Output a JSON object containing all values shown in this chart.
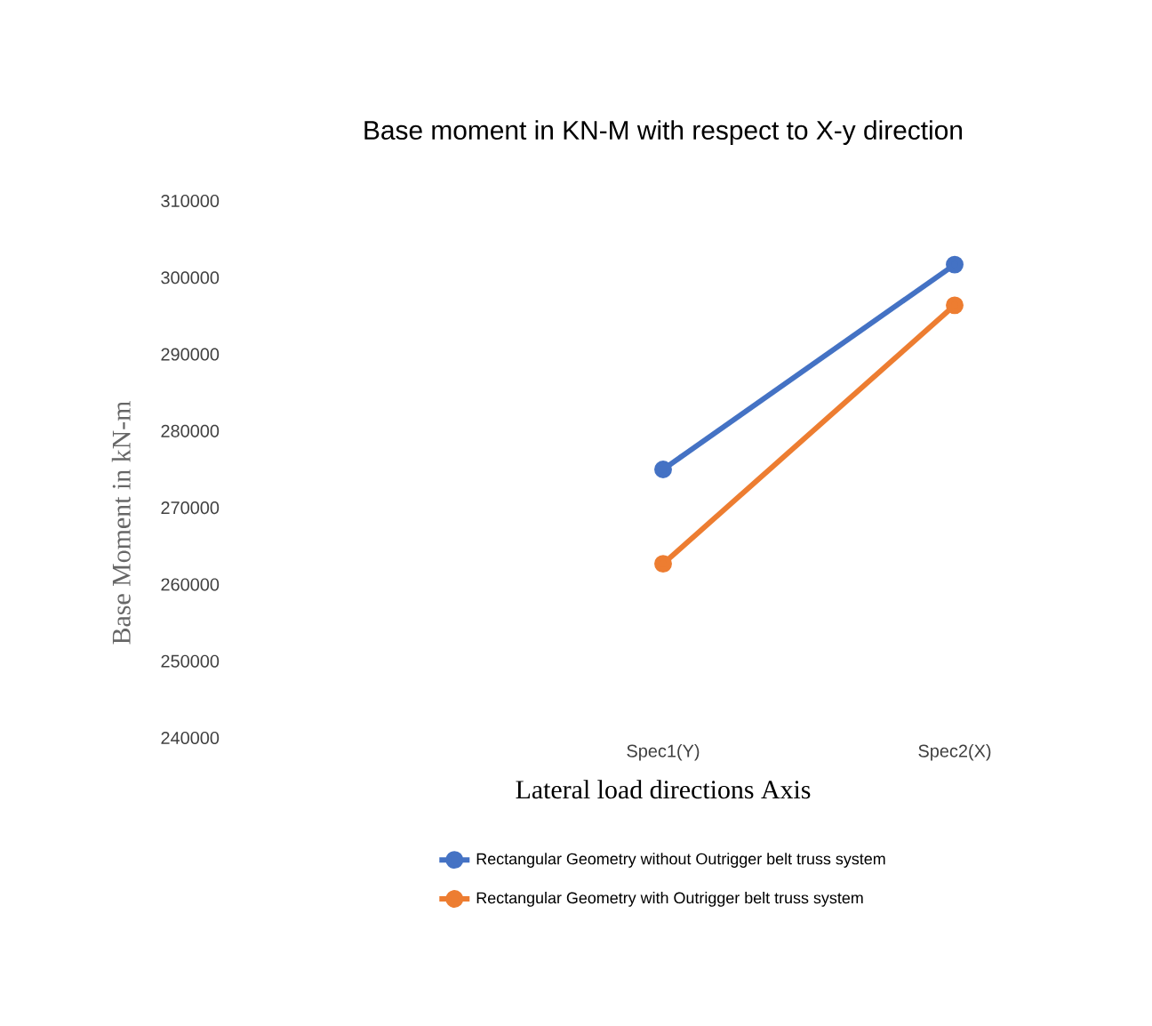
{
  "chart_data": {
    "type": "line",
    "title": "Base moment in KN-M with respect to X-y direction",
    "xlabel": "Lateral load directions Axis",
    "ylabel": "Base Moment in kN-m",
    "categories": [
      null,
      "Spec1(Y)",
      "Spec2(X)"
    ],
    "series": [
      {
        "name": "Rectangular Geometry without Outrigger belt truss system",
        "color": "#4472c4",
        "values": [
          null,
          275000,
          301700
        ]
      },
      {
        "name": "Rectangular Geometry with Outrigger belt truss system",
        "color": "#ed7d31",
        "values": [
          null,
          262700,
          296400
        ]
      }
    ],
    "ylim": [
      240000,
      310000
    ],
    "yticks": [
      240000,
      250000,
      260000,
      270000,
      280000,
      290000,
      300000,
      310000
    ],
    "grid": false,
    "legend": "bottom",
    "marker": "circle",
    "line_style": "solid"
  }
}
